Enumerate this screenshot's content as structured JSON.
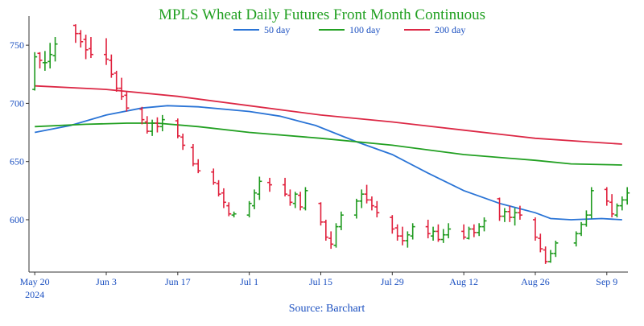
{
  "chart_data": {
    "type": "line",
    "subtype": "ohlc-with-moving-averages",
    "title": "MPLS Wheat Daily Futures Front Month Continuous",
    "source": "Source: Barchart",
    "xlabel": "",
    "ylabel": "",
    "x_tick_labels": [
      {
        "label": "May 20",
        "sublabel": "2024",
        "day": 0
      },
      {
        "label": "Jun 3",
        "day": 14
      },
      {
        "label": "Jun 17",
        "day": 28
      },
      {
        "label": "Jul 1",
        "day": 42
      },
      {
        "label": "Jul 15",
        "day": 56
      },
      {
        "label": "Jul 29",
        "day": 70
      },
      {
        "label": "Aug 12",
        "day": 84
      },
      {
        "label": "Aug 26",
        "day": 98
      },
      {
        "label": "Sep 9",
        "day": 112
      }
    ],
    "y_ticks": [
      600,
      650,
      700,
      750
    ],
    "ylim": [
      555,
      775
    ],
    "xlim": [
      -0.5,
      115.5
    ],
    "grid": false,
    "legend_position": "top-center",
    "colors": {
      "title": "#22a022",
      "source": "#1a4fc0",
      "axis_text": "#1a4fc0",
      "up_bar": "#1e9a1e",
      "down_bar": "#e0203c",
      "ma50": "#2a74d6",
      "ma100": "#22a022",
      "ma200": "#dc2845"
    },
    "series": [
      {
        "name": "50 day",
        "key": "ma50",
        "points": [
          [
            0,
            675
          ],
          [
            7,
            681
          ],
          [
            14,
            690
          ],
          [
            21,
            696
          ],
          [
            26,
            698
          ],
          [
            32,
            697
          ],
          [
            42,
            693
          ],
          [
            48,
            689
          ],
          [
            55,
            681
          ],
          [
            63,
            667
          ],
          [
            70,
            656
          ],
          [
            77,
            640
          ],
          [
            84,
            625
          ],
          [
            91,
            614
          ],
          [
            98,
            606
          ],
          [
            101,
            601
          ],
          [
            105,
            600
          ],
          [
            111,
            601
          ],
          [
            115,
            600
          ]
        ]
      },
      {
        "name": "100 day",
        "key": "ma100",
        "points": [
          [
            0,
            680
          ],
          [
            10,
            682
          ],
          [
            18,
            683
          ],
          [
            24,
            683
          ],
          [
            32,
            680
          ],
          [
            42,
            675
          ],
          [
            56,
            670
          ],
          [
            70,
            664
          ],
          [
            84,
            656
          ],
          [
            98,
            651
          ],
          [
            105,
            648
          ],
          [
            115,
            647
          ]
        ]
      },
      {
        "name": "200 day",
        "key": "ma200",
        "points": [
          [
            0,
            715
          ],
          [
            14,
            712
          ],
          [
            28,
            706
          ],
          [
            42,
            698
          ],
          [
            56,
            690
          ],
          [
            70,
            684
          ],
          [
            84,
            677
          ],
          [
            98,
            670
          ],
          [
            108,
            667
          ],
          [
            115,
            665
          ]
        ]
      }
    ],
    "ohlc_dates": [
      "May 20",
      "May 21",
      "May 22",
      "May 23",
      "May 24",
      "May 28",
      "May 29",
      "May 30",
      "May 31",
      "Jun 3",
      "Jun 4",
      "Jun 5",
      "Jun 6",
      "Jun 7",
      "Jun 10",
      "Jun 11",
      "Jun 12",
      "Jun 13",
      "Jun 14",
      "Jun 17",
      "Jun 18",
      "Jun 20",
      "Jun 21",
      "Jun 24",
      "Jun 25",
      "Jun 26",
      "Jun 27",
      "Jun 28",
      "Jul 1",
      "Jul 2",
      "Jul 3",
      "Jul 5",
      "Jul 8",
      "Jul 9",
      "Jul 10",
      "Jul 11",
      "Jul 12",
      "Jul 15",
      "Jul 16",
      "Jul 17",
      "Jul 18",
      "Jul 19",
      "Jul 22",
      "Jul 23",
      "Jul 24",
      "Jul 25",
      "Jul 26",
      "Jul 29",
      "Jul 30",
      "Jul 31",
      "Aug 1",
      "Aug 2",
      "Aug 5",
      "Aug 6",
      "Aug 7",
      "Aug 8",
      "Aug 9",
      "Aug 12",
      "Aug 13",
      "Aug 14",
      "Aug 15",
      "Aug 16",
      "Aug 19",
      "Aug 20",
      "Aug 21",
      "Aug 22",
      "Aug 23",
      "Aug 26",
      "Aug 27",
      "Aug 28",
      "Aug 29",
      "Aug 30",
      "Sep 3",
      "Sep 4",
      "Sep 5",
      "Sep 6",
      "Sep 9",
      "Sep 10",
      "Sep 11",
      "Sep 12",
      "Sep 13"
    ],
    "ohlc_days": [
      0,
      1,
      2,
      3,
      4,
      8,
      9,
      10,
      11,
      14,
      15,
      16,
      17,
      18,
      21,
      22,
      23,
      24,
      25,
      28,
      29,
      31,
      32,
      35,
      36,
      37,
      38,
      39,
      42,
      43,
      44,
      46,
      49,
      50,
      51,
      52,
      53,
      56,
      57,
      58,
      59,
      60,
      63,
      64,
      65,
      66,
      67,
      70,
      71,
      72,
      73,
      74,
      77,
      78,
      79,
      80,
      81,
      84,
      85,
      86,
      87,
      88,
      91,
      92,
      93,
      94,
      95,
      98,
      99,
      100,
      101,
      102,
      106,
      107,
      108,
      109,
      112,
      113,
      114,
      115,
      116
    ],
    "ohlc": [
      [
        712,
        744,
        711,
        740
      ],
      [
        743,
        744,
        730,
        737
      ],
      [
        735,
        745,
        728,
        735
      ],
      [
        736,
        752,
        730,
        742
      ],
      [
        741,
        757,
        736,
        751
      ],
      [
        767,
        768,
        752,
        760
      ],
      [
        760,
        763,
        748,
        753
      ],
      [
        755,
        759,
        738,
        746
      ],
      [
        747,
        757,
        739,
        742
      ],
      [
        742,
        756,
        733,
        738
      ],
      [
        737,
        742,
        722,
        725
      ],
      [
        726,
        728,
        710,
        713
      ],
      [
        713,
        722,
        703,
        706
      ],
      [
        707,
        710,
        693,
        696
      ],
      [
        695,
        697,
        682,
        686
      ],
      [
        684,
        689,
        674,
        676
      ],
      [
        676,
        686,
        672,
        683
      ],
      [
        683,
        688,
        675,
        680
      ],
      [
        680,
        690,
        676,
        686
      ],
      [
        685,
        687,
        670,
        672
      ],
      [
        671,
        674,
        660,
        664
      ],
      [
        662,
        665,
        646,
        648
      ],
      [
        648,
        652,
        640,
        642
      ],
      [
        641,
        644,
        630,
        632
      ],
      [
        631,
        634,
        620,
        622
      ],
      [
        623,
        627,
        610,
        615
      ],
      [
        612,
        615,
        603,
        605
      ],
      [
        604,
        607,
        602,
        605
      ],
      [
        604,
        616,
        602,
        614
      ],
      [
        612,
        626,
        609,
        623
      ],
      [
        622,
        637,
        617,
        633
      ],
      [
        632,
        636,
        624,
        630
      ],
      [
        630,
        636,
        620,
        622
      ],
      [
        621,
        626,
        612,
        615
      ],
      [
        614,
        624,
        610,
        622
      ],
      [
        621,
        624,
        608,
        611
      ],
      [
        610,
        628,
        608,
        625
      ],
      [
        614,
        615,
        595,
        598
      ],
      [
        598,
        600,
        582,
        585
      ],
      [
        584,
        590,
        575,
        579
      ],
      [
        578,
        597,
        576,
        594
      ],
      [
        594,
        607,
        591,
        604
      ],
      [
        604,
        618,
        601,
        616
      ],
      [
        616,
        626,
        610,
        622
      ],
      [
        622,
        630,
        614,
        617
      ],
      [
        617,
        620,
        608,
        612
      ],
      [
        611,
        616,
        602,
        606
      ],
      [
        602,
        604,
        588,
        592
      ],
      [
        593,
        596,
        582,
        586
      ],
      [
        586,
        594,
        578,
        582
      ],
      [
        582,
        590,
        576,
        587
      ],
      [
        586,
        597,
        583,
        594
      ],
      [
        594,
        600,
        584,
        588
      ],
      [
        586,
        594,
        582,
        590
      ],
      [
        590,
        596,
        581,
        583
      ],
      [
        583,
        592,
        580,
        587
      ],
      [
        587,
        597,
        584,
        592
      ],
      [
        590,
        596,
        583,
        585
      ],
      [
        584,
        594,
        583,
        592
      ],
      [
        592,
        596,
        585,
        589
      ],
      [
        589,
        597,
        586,
        594
      ],
      [
        594,
        602,
        590,
        599
      ],
      [
        618,
        619,
        599,
        603
      ],
      [
        603,
        610,
        598,
        607
      ],
      [
        607,
        612,
        598,
        602
      ],
      [
        602,
        610,
        595,
        606
      ],
      [
        606,
        612,
        600,
        604
      ],
      [
        600,
        602,
        582,
        585
      ],
      [
        584,
        588,
        572,
        575
      ],
      [
        574,
        577,
        562,
        564
      ],
      [
        564,
        574,
        563,
        571
      ],
      [
        571,
        582,
        568,
        580
      ],
      [
        580,
        590,
        577,
        588
      ],
      [
        588,
        598,
        586,
        596
      ],
      [
        596,
        608,
        594,
        604
      ],
      [
        604,
        628,
        601,
        625
      ],
      [
        626,
        628,
        612,
        616
      ],
      [
        615,
        622,
        602,
        605
      ],
      [
        604,
        614,
        602,
        612
      ],
      [
        612,
        620,
        608,
        617
      ],
      [
        617,
        628,
        613,
        623
      ]
    ]
  }
}
